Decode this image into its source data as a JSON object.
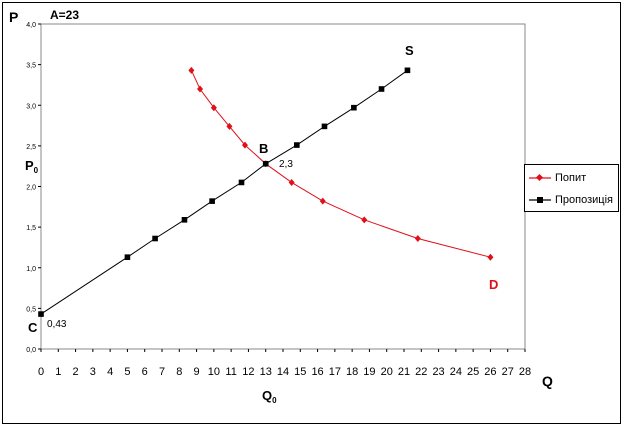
{
  "chart_data": {
    "type": "line",
    "ylabel": "P",
    "xlabel": "Q",
    "annotations": {
      "title": "A=23",
      "p0": "P",
      "p0_sub": "0",
      "q0": "Q",
      "q0_sub": "0",
      "point_c": "C",
      "value_c": "0,43",
      "point_b": "B",
      "value_b": "2,3",
      "label_s": "S",
      "label_d": "D"
    },
    "xlim": [
      0,
      28
    ],
    "ylim": [
      0,
      4.0
    ],
    "x_ticks": [
      "0",
      "1",
      "2",
      "3",
      "4",
      "5",
      "6",
      "7",
      "8",
      "9",
      "10",
      "11",
      "12",
      "13",
      "14",
      "15",
      "16",
      "17",
      "18",
      "19",
      "20",
      "21",
      "22",
      "23",
      "24",
      "25",
      "26",
      "27",
      "28"
    ],
    "y_ticks": [
      "0,0",
      "0,5",
      "1,0",
      "1,5",
      "2,0",
      "2,5",
      "3,0",
      "3,5",
      "4,0"
    ],
    "series": [
      {
        "name": "Попит",
        "color": "#e0101a",
        "marker": "diamond",
        "points": [
          [
            8.7,
            3.43
          ],
          [
            9.2,
            3.2
          ],
          [
            10.0,
            2.97
          ],
          [
            10.9,
            2.74
          ],
          [
            11.8,
            2.51
          ],
          [
            13.0,
            2.28
          ],
          [
            14.5,
            2.05
          ],
          [
            16.3,
            1.82
          ],
          [
            18.7,
            1.59
          ],
          [
            21.8,
            1.36
          ],
          [
            26.0,
            1.13
          ]
        ]
      },
      {
        "name": "Пропозиція",
        "color": "#000000",
        "marker": "square",
        "points": [
          [
            0,
            0.43
          ],
          [
            5.0,
            1.13
          ],
          [
            6.6,
            1.36
          ],
          [
            8.3,
            1.59
          ],
          [
            9.9,
            1.82
          ],
          [
            11.6,
            2.05
          ],
          [
            13.0,
            2.28
          ],
          [
            14.8,
            2.51
          ],
          [
            16.4,
            2.74
          ],
          [
            18.1,
            2.97
          ],
          [
            19.7,
            3.2
          ],
          [
            21.2,
            3.43
          ]
        ]
      }
    ],
    "legend": "right"
  }
}
